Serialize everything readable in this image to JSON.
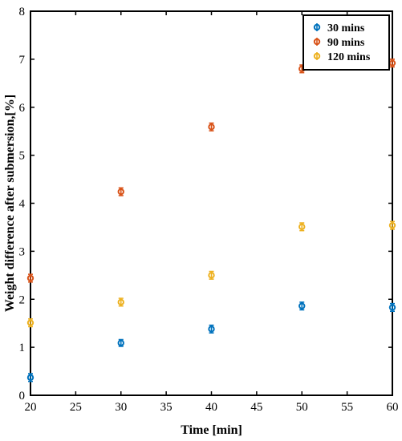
{
  "chart_data": {
    "type": "scatter",
    "title": "",
    "xlabel": "Time [min]",
    "ylabel": "Weight difference after submersion,[%]",
    "xlim": [
      20,
      60
    ],
    "ylim": [
      0,
      8
    ],
    "xticks": [
      20,
      25,
      30,
      35,
      40,
      45,
      50,
      55,
      60
    ],
    "yticks": [
      0,
      1,
      2,
      3,
      4,
      5,
      6,
      7,
      8
    ],
    "grid": false,
    "legend_position": "top-right",
    "error_bars": true,
    "series": [
      {
        "name": "30 mins",
        "color": "#0072BD",
        "x": [
          20,
          30,
          40,
          50,
          60
        ],
        "y": [
          0.37,
          1.09,
          1.38,
          1.86,
          1.83
        ],
        "err": [
          0.08,
          0.07,
          0.08,
          0.08,
          0.08
        ]
      },
      {
        "name": "90 mins",
        "color": "#D95319",
        "x": [
          20,
          30,
          40,
          50,
          60
        ],
        "y": [
          2.44,
          4.24,
          5.59,
          6.8,
          6.92
        ],
        "err": [
          0.08,
          0.08,
          0.08,
          0.08,
          0.08
        ]
      },
      {
        "name": "120 mins",
        "color": "#EDB120",
        "x": [
          20,
          30,
          40,
          50,
          60
        ],
        "y": [
          1.51,
          1.94,
          2.5,
          3.51,
          3.54
        ],
        "err": [
          0.08,
          0.08,
          0.08,
          0.08,
          0.08
        ]
      }
    ]
  }
}
